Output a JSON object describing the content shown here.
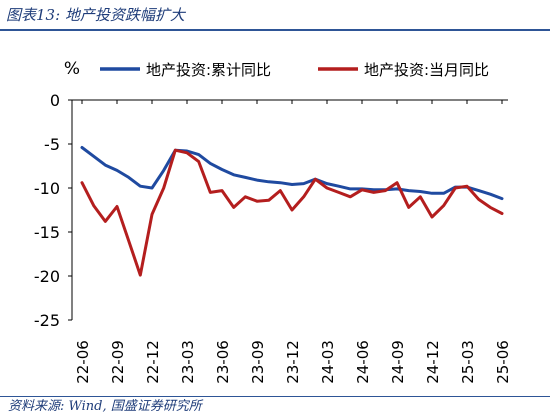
{
  "figure": {
    "title": "图表13: 地产投资跌幅扩大",
    "source": "资料来源: Wind, 国盛证券研究所"
  },
  "colors": {
    "accent": "#2e5596",
    "series_cumulative": "#1f4aa0",
    "series_monthly": "#b41e1e"
  },
  "chart_data": {
    "type": "line",
    "ylabel": "%",
    "ylim": [
      -25,
      0
    ],
    "yticks": [
      0,
      -5,
      -10,
      -15,
      -20,
      -25
    ],
    "grid": false,
    "legend": "top",
    "x": [
      "22-06",
      "22-07",
      "22-08",
      "22-09",
      "22-10",
      "22-11",
      "22-12",
      "23-01",
      "23-02",
      "23-03",
      "23-04",
      "23-05",
      "23-06",
      "23-07",
      "23-08",
      "23-09",
      "23-10",
      "23-11",
      "23-12",
      "24-01",
      "24-02",
      "24-03",
      "24-04",
      "24-05",
      "24-06",
      "24-07",
      "24-08",
      "24-09",
      "24-10",
      "24-11",
      "24-12",
      "25-01",
      "25-02",
      "25-03",
      "25-04",
      "25-05",
      "25-06"
    ],
    "xtick_labels": [
      "22-06",
      "22-09",
      "22-12",
      "23-03",
      "23-06",
      "23-09",
      "23-12",
      "24-03",
      "24-06",
      "24-09",
      "24-12",
      "25-03",
      "25-06"
    ],
    "series": [
      {
        "name": "地产投资:累计同比",
        "values": [
          -5.4,
          -6.4,
          -7.4,
          -8.0,
          -8.8,
          -9.8,
          -10.0,
          -8.0,
          -5.7,
          -5.8,
          -6.2,
          -7.2,
          -7.9,
          -8.5,
          -8.8,
          -9.1,
          -9.3,
          -9.4,
          -9.6,
          -9.5,
          -9.0,
          -9.5,
          -9.8,
          -10.1,
          -10.1,
          -10.2,
          -10.2,
          -10.1,
          -10.3,
          -10.4,
          -10.6,
          -10.6,
          -9.9,
          -9.9,
          -10.3,
          -10.7,
          -11.2
        ]
      },
      {
        "name": "地产投资:当月同比",
        "values": [
          -9.4,
          -12.0,
          -13.8,
          -12.1,
          -16.0,
          -19.9,
          -13.0,
          -10.0,
          -5.7,
          -6.0,
          -7.0,
          -10.5,
          -10.3,
          -12.2,
          -11.0,
          -11.5,
          -11.4,
          -10.3,
          -12.5,
          -11.0,
          -9.0,
          -10.0,
          -10.5,
          -11.0,
          -10.2,
          -10.5,
          -10.3,
          -9.4,
          -12.2,
          -11.0,
          -13.3,
          -12.0,
          -10.0,
          -9.8,
          -11.3,
          -12.2,
          -12.9
        ]
      }
    ]
  }
}
